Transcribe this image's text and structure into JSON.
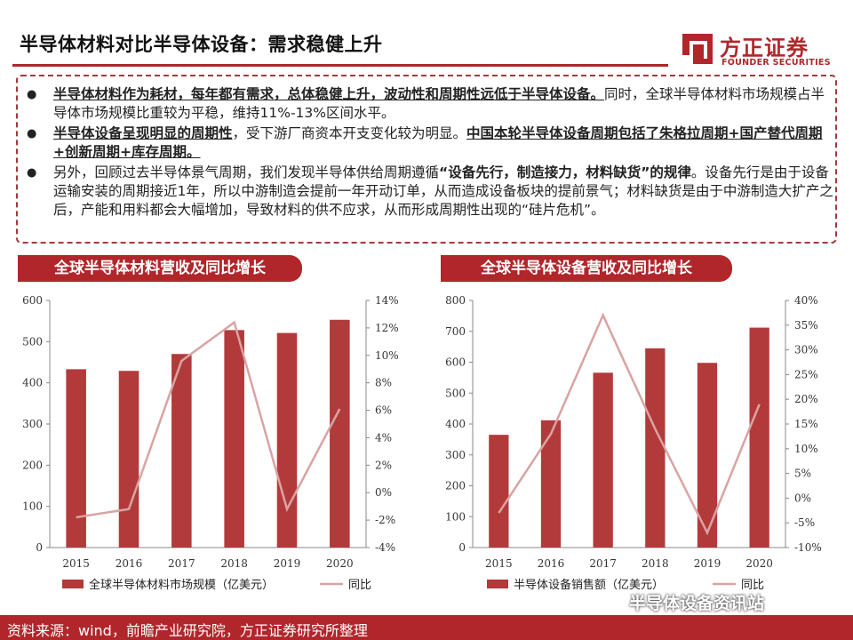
{
  "header": {
    "title": "半导体材料对比半导体设备：需求稳健上升",
    "logo_cn": "方正证券",
    "logo_en": "FOUNDER SECURITIES"
  },
  "bullets": {
    "b1_bold": "半导体材料作为耗材，每年都有需求，总体稳健上升，波动性和周期性远低于半导体设备。",
    "b1_rest": "同时，全球半导体材料市场规模占半导体市场规模比重较为平稳，维持11%-13%区间水平。",
    "b2_bold": "半导体设备呈现明显的周期性",
    "b2_mid": "，受下游厂商资本开支变化较为明显。",
    "b2_bold2": "中国本轮半导体设备周期包括了朱格拉周期+国产替代周期+创新周期+库存周期。",
    "b3_a": "另外，回顾过去半导体景气周期，我们发现半导体供给周期遵循",
    "b3_bold": "“设备先行，制造接力，材料缺货”的规律",
    "b3_rest": "。设备先行是由于设备运输安装的周期接近1年，所以中游制造会提前一年开动订单，从而造成设备板块的提前景气；材料缺货是由于中游制造大扩产之后，产能和用料都会大幅增加，导致材料的供不应求，从而形成周期性出现的“硅片危机”。"
  },
  "footer": {
    "source": "资料来源：wind，前瞻产业研究院，方正证券研究所整理",
    "watermark": "半导体设备资讯站"
  },
  "colors": {
    "accent": "#b0262b",
    "bar": "#b33a3a",
    "line": "#d9a3a3"
  },
  "chart_data": [
    {
      "type": "bar",
      "title": "全球半导体材料营收及同比增长",
      "categories": [
        "2015",
        "2016",
        "2017",
        "2018",
        "2019",
        "2020"
      ],
      "series": [
        {
          "name": "全球半导体材料市场规模（亿美元）",
          "type": "bar",
          "axis": "left",
          "values": [
            433,
            429,
            470,
            528,
            521,
            553
          ]
        },
        {
          "name": "同比",
          "type": "line",
          "axis": "right",
          "values": [
            -1.8,
            -1.2,
            9.6,
            12.4,
            -1.2,
            6.1
          ]
        }
      ],
      "yleft": {
        "range": [
          0,
          600
        ],
        "ticks": [
          "0",
          "100",
          "200",
          "300",
          "400",
          "500",
          "600"
        ]
      },
      "yright": {
        "range": [
          -4,
          14
        ],
        "ticks": [
          "-4%",
          "-2%",
          "0%",
          "2%",
          "4%",
          "6%",
          "8%",
          "10%",
          "12%",
          "14%"
        ]
      },
      "grid": false,
      "legend": "bottom"
    },
    {
      "type": "bar",
      "title": "全球半导体设备营收及同比增长",
      "categories": [
        "2015",
        "2016",
        "2017",
        "2018",
        "2019",
        "2020"
      ],
      "series": [
        {
          "name": "半导体设备销售额（亿美元）",
          "type": "bar",
          "axis": "left",
          "values": [
            365,
            412,
            566,
            645,
            598,
            712
          ]
        },
        {
          "name": "同比",
          "type": "line",
          "axis": "right",
          "values": [
            -3,
            13,
            37,
            14,
            -7,
            19
          ]
        }
      ],
      "yleft": {
        "range": [
          0,
          800
        ],
        "ticks": [
          "0",
          "100",
          "200",
          "300",
          "400",
          "500",
          "600",
          "700",
          "800"
        ]
      },
      "yright": {
        "range": [
          -10,
          40
        ],
        "ticks": [
          "-10%",
          "-5%",
          "0%",
          "5%",
          "10%",
          "15%",
          "20%",
          "25%",
          "30%",
          "35%",
          "40%"
        ]
      },
      "grid": false,
      "legend": "bottom"
    }
  ]
}
